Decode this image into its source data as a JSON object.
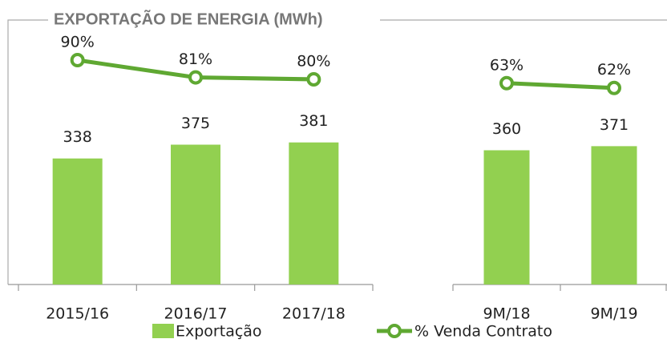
{
  "chart_data": [
    {
      "type": "bar-line",
      "title": "EXPORTAÇÃO DE ENERGIA (MWh)",
      "categories": [
        "2015/16",
        "2016/17",
        "2017/18"
      ],
      "ylim": [
        0,
        720
      ],
      "y2lim": [
        -27,
        113
      ],
      "series": [
        {
          "name": "Exportação",
          "color": "#92d050",
          "values": [
            338,
            375,
            381
          ]
        },
        {
          "name": "% Venda Contrato",
          "color": "#5fa832",
          "axis": "y2",
          "values": [
            90,
            81,
            80
          ],
          "value_labels": [
            "90%",
            "81%",
            "80%"
          ]
        }
      ]
    },
    {
      "type": "bar-line",
      "categories": [
        "9M/18",
        "9M/19"
      ],
      "ylim": [
        0,
        720
      ],
      "y2lim": [
        21,
        77
      ],
      "series": [
        {
          "color": "#92d050",
          "values": [
            360,
            371
          ]
        },
        {
          "color": "#5fa832",
          "axis": "y2",
          "values": [
            63,
            62
          ],
          "value_labels": [
            "63%",
            "62%"
          ]
        }
      ]
    }
  ]
}
